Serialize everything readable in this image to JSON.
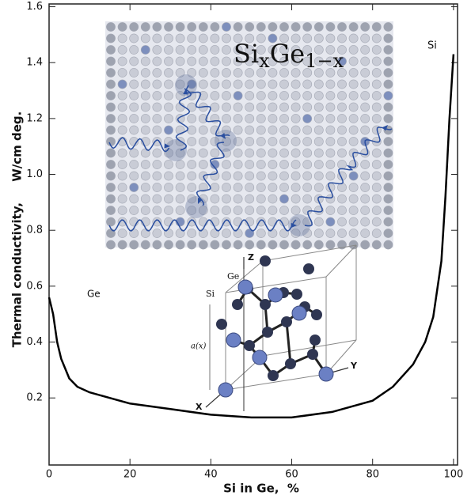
{
  "chart_data": {
    "type": "line",
    "x_label": "Si in Ge,  %",
    "y_label": "Thermal conductivity,     W/cm deg.",
    "x": [
      0,
      1,
      2,
      3,
      5,
      7,
      10,
      15,
      20,
      30,
      40,
      50,
      60,
      70,
      80,
      85,
      90,
      93,
      95,
      97,
      98,
      99,
      100
    ],
    "values": [
      0.56,
      0.5,
      0.4,
      0.34,
      0.27,
      0.24,
      0.22,
      0.2,
      0.18,
      0.16,
      0.14,
      0.13,
      0.13,
      0.15,
      0.19,
      0.24,
      0.32,
      0.4,
      0.49,
      0.69,
      0.92,
      1.2,
      1.43
    ],
    "color": "#000000",
    "xlim": [
      0,
      101
    ],
    "ylim": [
      -0.04,
      1.61
    ],
    "xticks": [
      0,
      20,
      40,
      60,
      80,
      100
    ],
    "yticks": [
      0.2,
      0.4,
      0.6,
      0.8,
      {
        "value": 1,
        "label": "1.0"
      },
      1.2,
      1.4,
      1.6
    ],
    "annotations": {
      "ge": "Ge",
      "si": "Si"
    },
    "inset_title": {
      "base1": "Si",
      "sub1": "x",
      "base2": "Ge",
      "sub2": "1−x"
    },
    "crystal_labels": {
      "z": "Z",
      "y": "Y",
      "x": "X",
      "ge": "Ge",
      "si": "Si",
      "a": "a(x)"
    }
  }
}
